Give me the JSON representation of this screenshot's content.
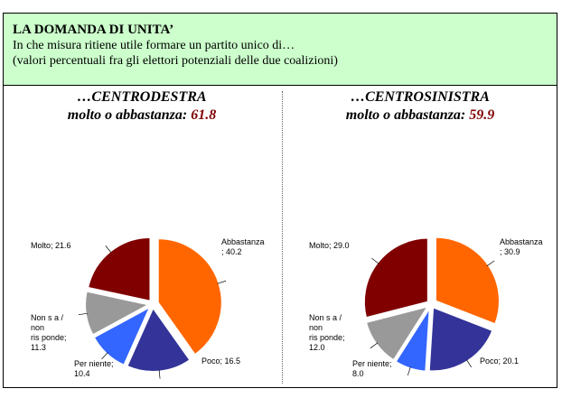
{
  "header": {
    "title": "LA DOMANDA DI UNITA’",
    "line1": "In che misura ritiene utile formare un partito unico di…",
    "line2": "(valori percentuali fra gli elettori potenziali delle due coalizioni)"
  },
  "chart_data": [
    {
      "type": "pie",
      "title": "…CENTRODESTRA",
      "subtitle_label": "molto o abbastanza:",
      "subtitle_value": "61.8",
      "slices": [
        {
          "name": "Abbastanza",
          "value": 40.2,
          "color": "#ff6600",
          "label_lines": [
            "Abbastanza",
            "; 40.2"
          ]
        },
        {
          "name": "Poco",
          "value": 16.5,
          "color": "#333399",
          "label_lines": [
            "Poco; 16.5"
          ]
        },
        {
          "name": "Per niente",
          "value": 10.4,
          "color": "#3366ff",
          "label_lines": [
            "Per niente;",
            "10.4"
          ]
        },
        {
          "name": "Non sa / non risponde",
          "value": 11.3,
          "color": "#999999",
          "label_lines": [
            "Non s a /",
            "non",
            "ris ponde;",
            "11.3"
          ]
        },
        {
          "name": "Molto",
          "value": 21.6,
          "color": "#800000",
          "label_lines": [
            "Molto; 21.6"
          ]
        }
      ]
    },
    {
      "type": "pie",
      "title": "…CENTROSINISTRA",
      "subtitle_label": "molto o abbastanza:",
      "subtitle_value": "59.9",
      "slices": [
        {
          "name": "Abbastanza",
          "value": 30.9,
          "color": "#ff6600",
          "label_lines": [
            "Abbastanza",
            "; 30.9"
          ]
        },
        {
          "name": "Poco",
          "value": 20.1,
          "color": "#333399",
          "label_lines": [
            "Poco; 20.1"
          ]
        },
        {
          "name": "Per niente",
          "value": 8.0,
          "color": "#3366ff",
          "label_lines": [
            "Per niente;",
            "8.0"
          ]
        },
        {
          "name": "Non sa / non risponde",
          "value": 12.0,
          "color": "#999999",
          "label_lines": [
            "Non s a /",
            "non",
            "ris ponde;",
            "12.0"
          ]
        },
        {
          "name": "Molto",
          "value": 29.0,
          "color": "#800000",
          "label_lines": [
            "Molto; 29.0"
          ]
        }
      ]
    }
  ]
}
